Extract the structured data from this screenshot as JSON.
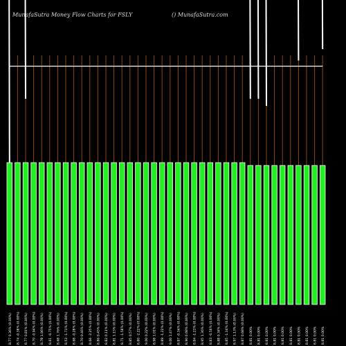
{
  "header": {
    "title": "MunafaSutra  Money Flow  Charts for FSLY",
    "watermark": "() MunafaSutra.com"
  },
  "colors": {
    "background": "#000000",
    "bar_fill": "#22ee22",
    "bar_edge": "#ffffff",
    "grid_line": "#8a4a12",
    "flow_line": "#ffffff"
  },
  "chart_data": {
    "type": "bar",
    "title": "MunafaSutra  Money Flow  Charts for FSLY",
    "categories": [
      "8.77 0.36% (0.00%)",
      "8.74 -0.38% (0.00%)",
      "8.77 0.81% (0.00%)",
      "8.70 -0.94% (0.00%)",
      "8.78 1.96% (0.00%)",
      "8.61 -0.75% (0.00%)",
      "8.68 1.76% (0.00%)",
      "8.53 -1.73% (0.00%)",
      "8.68 -0.28% (0.00%)",
      "8.70 0.46% (0.00%)",
      "8.66 -2.25% (0.00%)",
      "8.86 0.45% (0.00%)",
      "8.82 0.11% (0.00%)",
      "8.81 1.15% (0.00%)",
      "8.71 -1.58% (0.00%)",
      "8.85 0.57% (0.00%)",
      "8.80 -2.22% (0.00%)",
      "9.00 0.22% (0.00%)",
      "8.98 1.01% (0.00%)",
      "8.89 -1.22% (0.00%)",
      "9.00 1.47% (0.00%)",
      "8.87 -0.34% (0.00%)",
      "8.90 0.68% (0.00%)",
      "8.84 -1.23% (0.00%)",
      "8.95 1.36% (0.00%)",
      "8.83 -0.56% (0.00%)",
      "8.88 0.34% (0.00%)",
      "8.85 -1.34% (0.00%)",
      "8.97 1.13% (0.00%)",
      "8.87 0.68% (0.00%)",
      "8.81 0.00%",
      "8.81 0.00%",
      "8.81 0.00%",
      "8.81 0.00%",
      "8.81 0.00%",
      "8.81 0.00%",
      "8.81 0.00%",
      "8.81 0.00%",
      "8.81 0.00%",
      "8.81 0.00%"
    ],
    "values": [
      100,
      100,
      100,
      100,
      100,
      100,
      100,
      100,
      100,
      100,
      100,
      100,
      100,
      100,
      100,
      100,
      100,
      100,
      100,
      100,
      100,
      100,
      100,
      100,
      100,
      100,
      100,
      100,
      100,
      100,
      98,
      98,
      98,
      98,
      98,
      98,
      98,
      98,
      98,
      98
    ],
    "flow_line": [
      168,
      168,
      168,
      168,
      168,
      168,
      168,
      168,
      168,
      168,
      168,
      168,
      168,
      168,
      168,
      168,
      168,
      168,
      168,
      168,
      168,
      168,
      168,
      168,
      168,
      168,
      168,
      168,
      168,
      168,
      168,
      168,
      168,
      168,
      168,
      168,
      168,
      168,
      168,
      168
    ],
    "flow_spikes": [
      {
        "index": 0,
        "top": 300,
        "bottom": 100
      },
      {
        "index": 2,
        "top": 300,
        "bottom": 145
      },
      {
        "index": 30,
        "top": 300,
        "bottom": 145
      },
      {
        "index": 31,
        "top": 300,
        "bottom": 145
      },
      {
        "index": 32,
        "top": 300,
        "bottom": 140
      },
      {
        "index": 36,
        "top": 300,
        "bottom": 172
      },
      {
        "index": 37,
        "top": 300,
        "bottom": 220
      },
      {
        "index": 39,
        "top": 300,
        "bottom": 180
      }
    ],
    "ylim": [
      0,
      300
    ],
    "grid": true
  }
}
